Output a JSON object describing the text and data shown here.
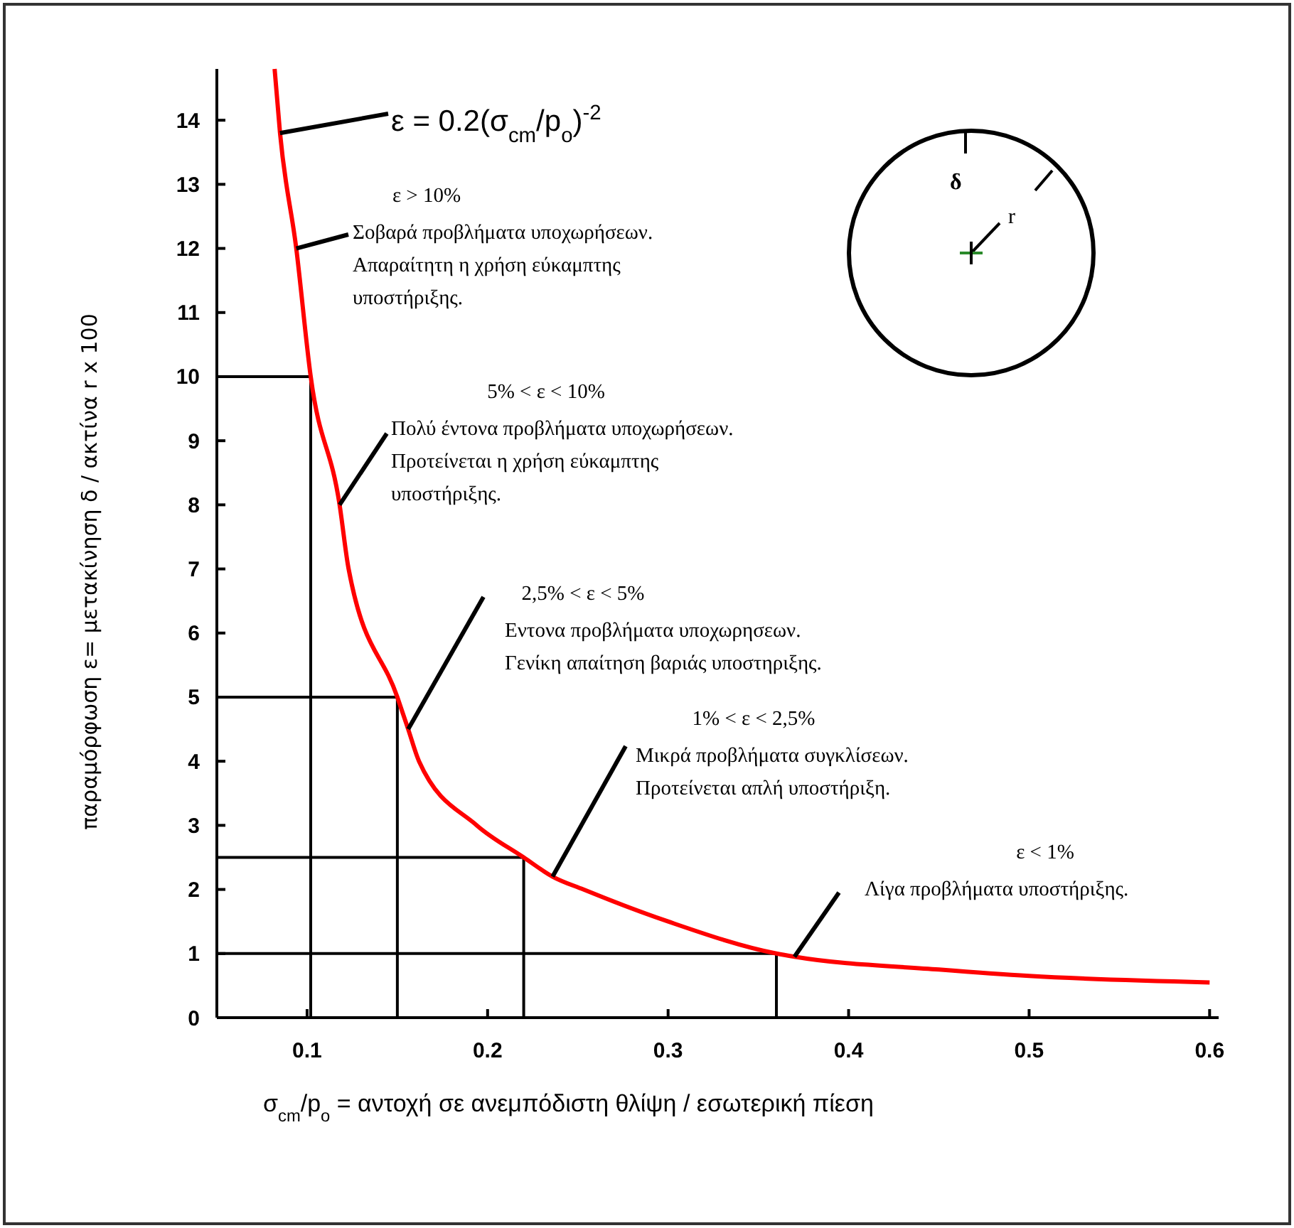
{
  "chart_data": {
    "type": "line",
    "xlabel": "σ$_{cm}$/p$_{o}$ = αντοχή σε ανεμπόδιστη θλίψη / εσωτερική πίεση",
    "ylabel": "παραμόρφωση ε= μετακίνηση δ / ακτίνα r x 100",
    "xlim": [
      0.05,
      0.605
    ],
    "xticks": [
      {
        "value": 0.1,
        "label": "0.1"
      },
      {
        "value": 0.2,
        "label": "0.2"
      },
      {
        "value": 0.3,
        "label": "0.3"
      },
      {
        "value": 0.4,
        "label": "0.4"
      },
      {
        "value": 0.5,
        "label": "0.5"
      },
      {
        "value": 0.6,
        "label": "0.6"
      }
    ],
    "ylim": [
      0,
      14.8
    ],
    "yticks": [
      0,
      1,
      2,
      3,
      4,
      5,
      6,
      7,
      8,
      9,
      10,
      11,
      12,
      13,
      14
    ],
    "grid": false,
    "marker": "none",
    "line_style": "solid",
    "series": [
      {
        "color": "#000000",
        "x": [
          0.05,
          0.102,
          0.102
        ],
        "values": [
          10,
          10,
          0
        ]
      },
      {
        "color": "#000000",
        "x": [
          0.05,
          0.15,
          0.15
        ],
        "values": [
          5,
          5,
          0
        ]
      },
      {
        "color": "#000000",
        "x": [
          0.05,
          0.22,
          0.22
        ],
        "values": [
          2.5,
          2.5,
          0
        ]
      },
      {
        "color": "#000000",
        "x": [
          0.05,
          0.36,
          0.36
        ],
        "values": [
          1,
          1,
          0
        ]
      },
      {
        "color": "#ff0000",
        "x": [
          0.082,
          0.085,
          0.094,
          0.102,
          0.118,
          0.123,
          0.15,
          0.156,
          0.162,
          0.194,
          0.22,
          0.236,
          0.253,
          0.3,
          0.36,
          0.37,
          0.45,
          0.5,
          0.6
        ],
        "values": [
          14.8,
          13.8,
          12,
          10,
          8,
          7,
          5,
          4.5,
          4,
          3,
          2.5,
          2.2,
          2,
          1.5,
          1,
          0.95,
          0.75,
          0.65,
          0.55
        ]
      }
    ],
    "annotations": [
      {
        "text": "ε = 0.2(σ$_{cm}$/p$_{o}$)$^{-2}$",
        "x": 0.085,
        "y": 13.8
      },
      {
        "text": "ε > 10%\nΣοβαρά προβλήματα υποχωρήσεων.\nΑπαραίτητη η χρήση εύκαμπτης\nυποστήριξης.",
        "x": 0.094,
        "y": 12
      },
      {
        "text": "5% < ε < 10%\nΠολύ έντονα προβλήματα υποχωρήσεων.\nΠροτείνεται η χρήση εύκαμπτης\nυποστήριξης.",
        "x": 0.118,
        "y": 8
      },
      {
        "text": "2,5% < ε < 5%\nΕντονα προβλήματα υποχωρησεων.\nΓενίκη απαίτηση βαριάς υποστηριξης.",
        "x": 0.156,
        "y": 4.5
      },
      {
        "text": "1% < ε < 2,5%\nΜικρά προβλήματα συγκλίσεων.\nΠροτείνεται απλή υποστήριξη.",
        "x": 0.236,
        "y": 2.2
      },
      {
        "text": "ε < 1%\nΛίγα προβλήματα υποστήριξης.",
        "x": 0.37,
        "y": 0.95
      },
      "δ",
      "r"
    ]
  }
}
